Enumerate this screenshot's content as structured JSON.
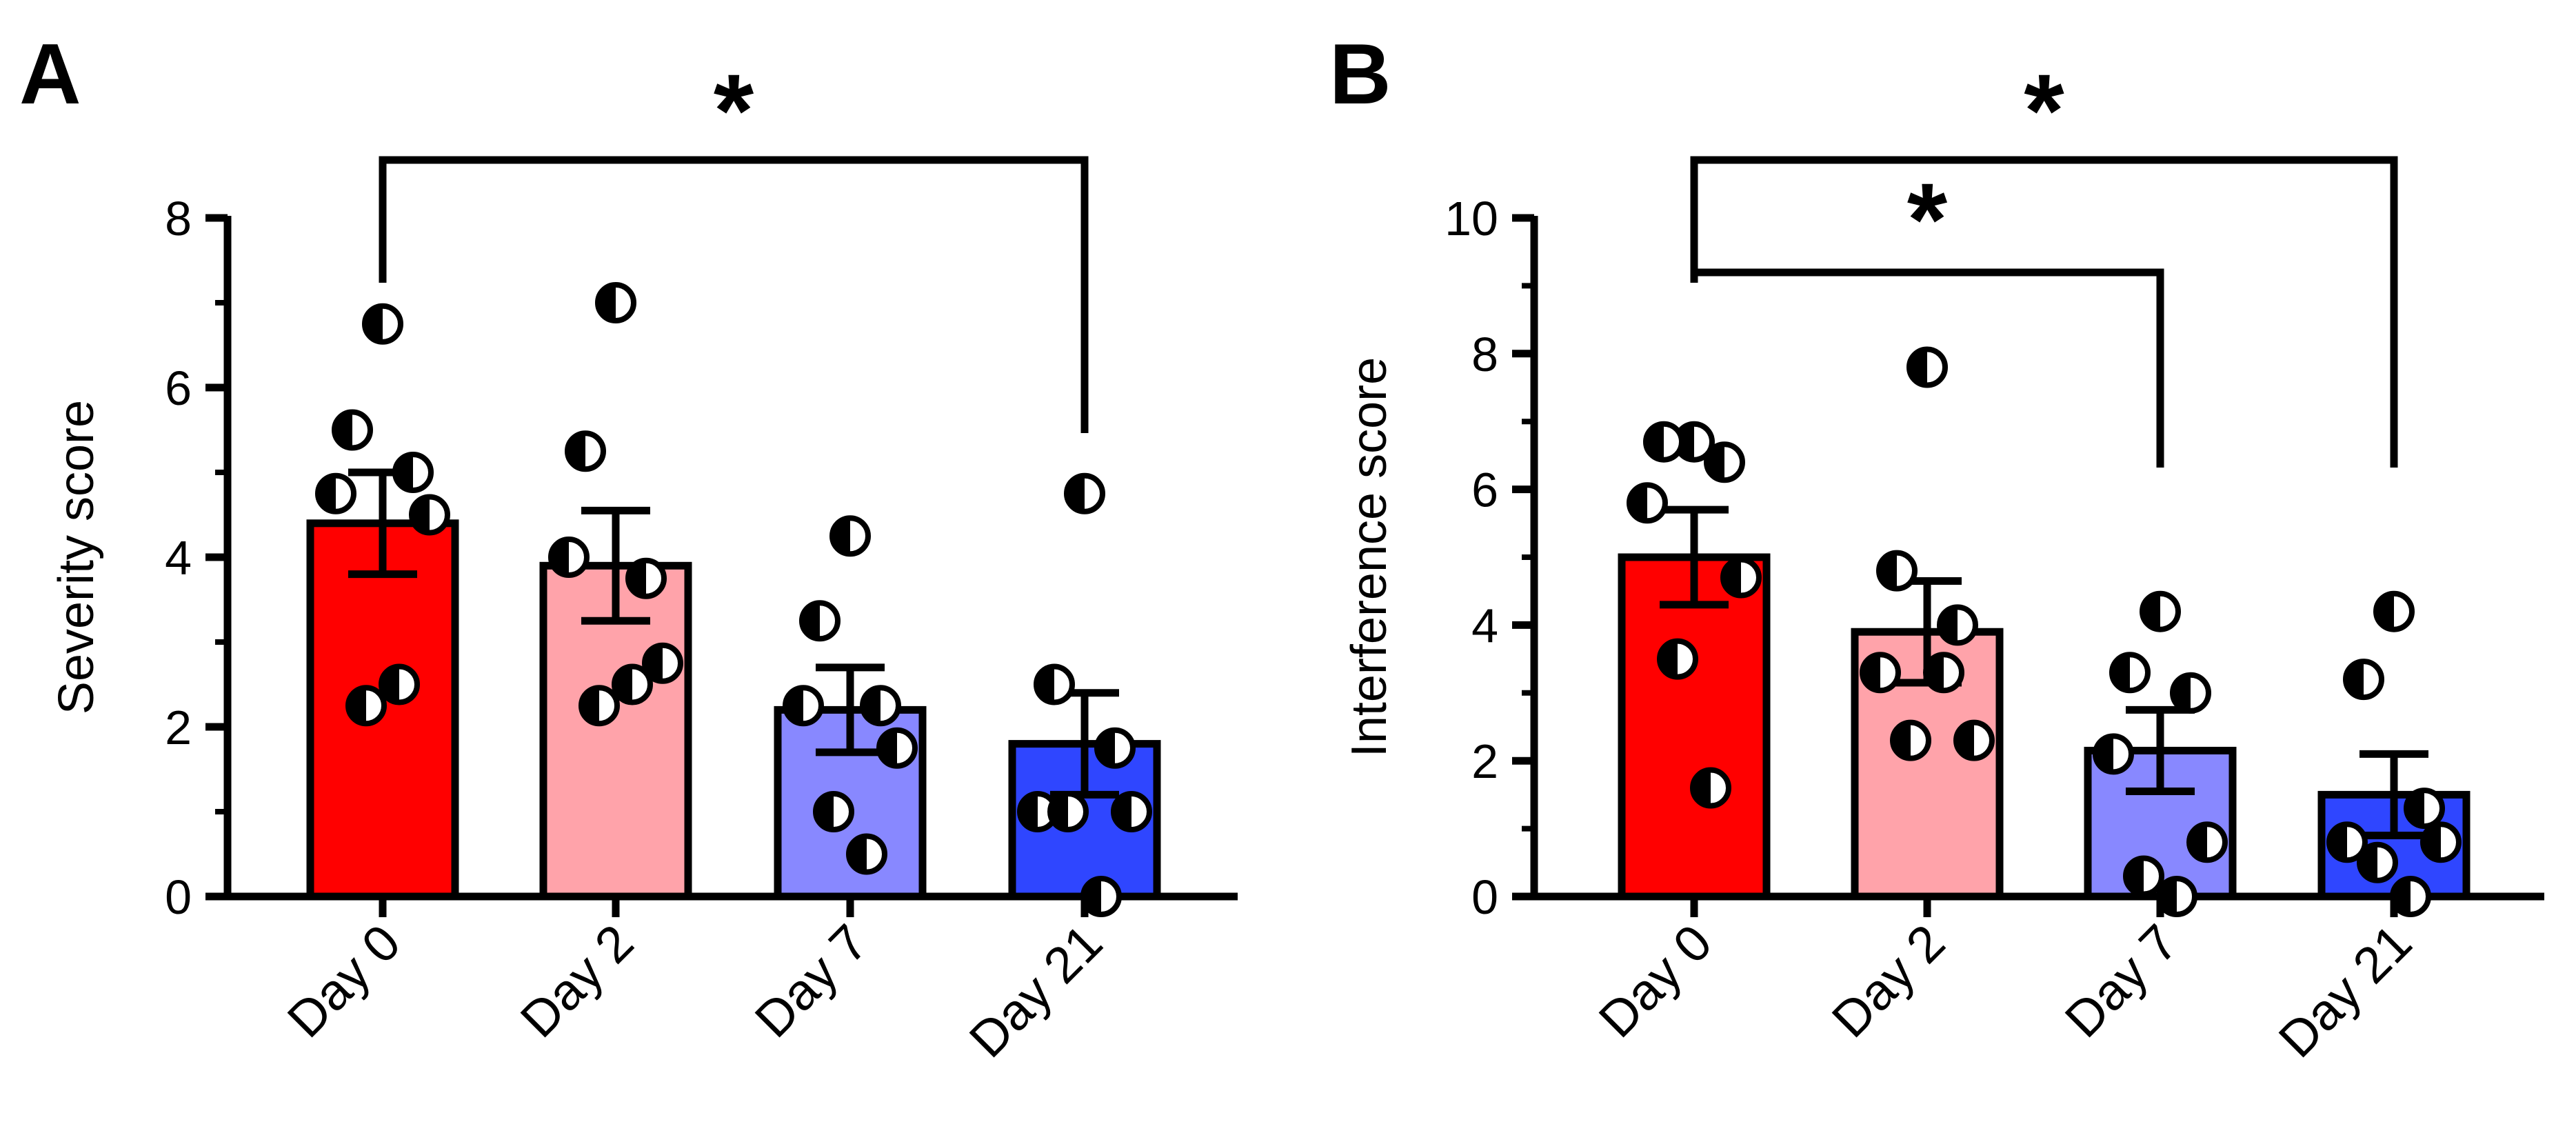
{
  "chart_data": [
    {
      "panel": "A",
      "type": "bar",
      "categories": [
        "Day 0",
        "Day 2",
        "Day 7",
        "Day 21"
      ],
      "values": [
        4.4,
        3.9,
        2.2,
        1.8
      ],
      "sem": [
        0.6,
        0.65,
        0.5,
        0.6
      ],
      "bar_colors": [
        "#ff0000",
        "#ffa3aa",
        "#8888ff",
        "#2f46ff"
      ],
      "points": [
        [
          6.75,
          5.5,
          5.0,
          4.75,
          4.5,
          2.25,
          2.5
        ],
        [
          7.0,
          5.25,
          3.75,
          4.0,
          2.75,
          2.25,
          2.5
        ],
        [
          4.25,
          3.25,
          2.25,
          2.25,
          1.75,
          1.0,
          0.5
        ],
        [
          4.75,
          2.5,
          1.75,
          1.0,
          1.0,
          1.0,
          0.0
        ]
      ],
      "title": "",
      "xlabel": "",
      "ylabel": "Severity score",
      "ylim": [
        0,
        8
      ],
      "yticks": [
        "0",
        "2",
        "4",
        "6",
        "8"
      ],
      "significance": [
        {
          "from": "Day 0",
          "to": "Day 21",
          "label": "*"
        }
      ]
    },
    {
      "panel": "B",
      "type": "bar",
      "categories": [
        "Day 0",
        "Day 2",
        "Day 7",
        "Day 21"
      ],
      "values": [
        5.0,
        3.9,
        2.15,
        1.5
      ],
      "sem": [
        0.7,
        0.75,
        0.6,
        0.6
      ],
      "bar_colors": [
        "#ff0000",
        "#ffa3aa",
        "#8888ff",
        "#2f46ff"
      ],
      "points": [
        [
          6.7,
          6.7,
          6.4,
          5.8,
          4.7,
          3.5,
          1.6
        ],
        [
          7.8,
          4.8,
          4.0,
          3.3,
          2.3,
          2.3,
          3.3
        ],
        [
          4.2,
          3.3,
          3.0,
          2.1,
          0.8,
          0.3,
          0.0
        ],
        [
          4.2,
          3.2,
          1.3,
          0.8,
          0.8,
          0.5,
          0.0
        ]
      ],
      "title": "",
      "xlabel": "",
      "ylabel": "Interference score",
      "ylim": [
        0,
        10
      ],
      "yticks": [
        "0",
        "2",
        "4",
        "6",
        "8",
        "10"
      ],
      "significance": [
        {
          "from": "Day 0",
          "to": "Day 21",
          "label": "*"
        },
        {
          "from": "Day 0",
          "to": "Day 7",
          "label": "*"
        }
      ]
    }
  ]
}
